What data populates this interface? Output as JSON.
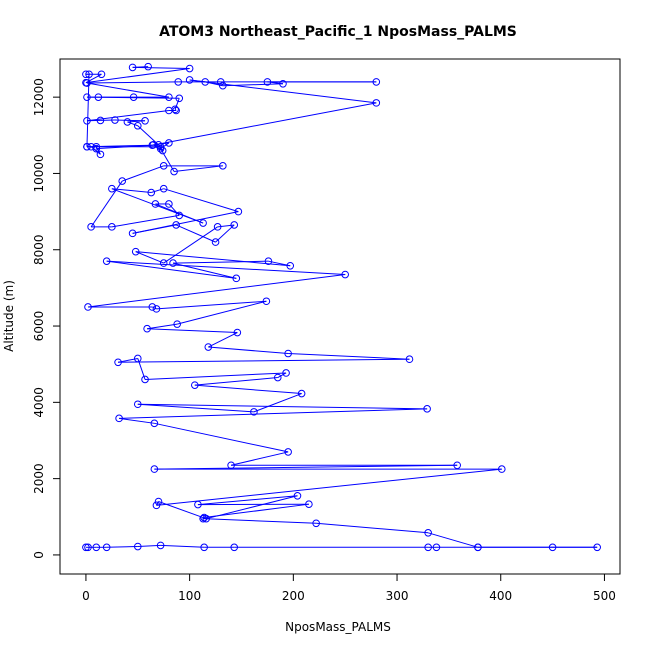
{
  "chart_data": {
    "type": "line",
    "title": "ATOM3 Northeast_Pacific_1 NposMass_PALMS",
    "xlabel": "NposMass_PALMS",
    "ylabel": "Altitude (m)",
    "xlim": [
      -25,
      515
    ],
    "ylim": [
      -500,
      13000
    ],
    "x_ticks": [
      0,
      100,
      200,
      300,
      400,
      500
    ],
    "y_ticks": [
      0,
      2000,
      4000,
      6000,
      8000,
      10000,
      12000
    ],
    "x_tick_labels": [
      "0",
      "100",
      "200",
      "300",
      "400",
      "500"
    ],
    "y_tick_labels": [
      "0",
      "2000",
      "4000",
      "6000",
      "8000",
      "10000",
      "12000"
    ],
    "grid": false,
    "line_color": "#0000ff",
    "marker": "open-circle",
    "series": [
      {
        "points": [
          [
            0,
            200
          ],
          [
            2,
            200
          ],
          [
            10,
            200
          ],
          [
            20,
            200
          ],
          [
            50,
            220
          ],
          [
            72,
            250
          ],
          [
            114,
            200
          ],
          [
            143,
            200
          ],
          [
            330,
            200
          ],
          [
            338,
            200
          ],
          [
            378,
            200
          ],
          [
            450,
            200
          ],
          [
            493,
            200
          ],
          [
            378,
            200
          ],
          [
            330,
            580
          ],
          [
            222,
            830
          ],
          [
            113,
            950
          ],
          [
            114,
            980
          ],
          [
            215,
            1330
          ],
          [
            108,
            1320
          ],
          [
            204,
            1550
          ],
          [
            116,
            950
          ],
          [
            70,
            1400
          ],
          [
            68,
            1300
          ],
          [
            401,
            2250
          ],
          [
            66,
            2250
          ],
          [
            358,
            2350
          ],
          [
            140,
            2350
          ],
          [
            195,
            2700
          ],
          [
            66,
            3450
          ],
          [
            32,
            3580
          ],
          [
            329,
            3830
          ],
          [
            50,
            3950
          ],
          [
            162,
            3750
          ],
          [
            208,
            4230
          ],
          [
            105,
            4450
          ],
          [
            185,
            4650
          ],
          [
            193,
            4770
          ],
          [
            57,
            4600
          ],
          [
            50,
            5150
          ],
          [
            31,
            5050
          ],
          [
            312,
            5130
          ],
          [
            195,
            5280
          ],
          [
            118,
            5450
          ],
          [
            146,
            5830
          ],
          [
            59,
            5930
          ],
          [
            88,
            6050
          ],
          [
            174,
            6650
          ],
          [
            68,
            6450
          ],
          [
            64,
            6500
          ],
          [
            2,
            6500
          ],
          [
            250,
            7350
          ],
          [
            20,
            7700
          ],
          [
            145,
            7250
          ],
          [
            84,
            7650
          ],
          [
            176,
            7700
          ],
          [
            197,
            7580
          ],
          [
            48,
            7950
          ],
          [
            75,
            7650
          ],
          [
            127,
            8600
          ],
          [
            143,
            8650
          ],
          [
            125,
            8200
          ],
          [
            87,
            8650
          ],
          [
            45,
            8430
          ],
          [
            147,
            9000
          ],
          [
            75,
            9600
          ],
          [
            63,
            9500
          ],
          [
            25,
            9600
          ],
          [
            113,
            8700
          ],
          [
            67,
            9200
          ],
          [
            80,
            9200
          ],
          [
            90,
            8900
          ],
          [
            25,
            8600
          ],
          [
            5,
            8600
          ],
          [
            35,
            9800
          ],
          [
            75,
            10200
          ],
          [
            132,
            10200
          ],
          [
            85,
            10050
          ],
          [
            72,
            10650
          ],
          [
            80,
            10800
          ],
          [
            65,
            10750
          ],
          [
            74,
            10600
          ],
          [
            70,
            10750
          ],
          [
            10,
            10650
          ],
          [
            10,
            10700
          ],
          [
            14,
            10500
          ],
          [
            5,
            10700
          ],
          [
            1,
            10700
          ],
          [
            72,
            10700
          ],
          [
            50,
            11250
          ],
          [
            40,
            11350
          ],
          [
            57,
            11380
          ],
          [
            28,
            11400
          ],
          [
            14,
            11390
          ],
          [
            1,
            11380
          ],
          [
            80,
            11650
          ],
          [
            87,
            11650
          ],
          [
            86,
            11680
          ],
          [
            90,
            11970
          ],
          [
            1,
            12000
          ],
          [
            12,
            12000
          ],
          [
            46,
            12000
          ],
          [
            80,
            12000
          ],
          [
            1,
            12370
          ],
          [
            89,
            12400
          ],
          [
            130,
            12400
          ],
          [
            280,
            12400
          ],
          [
            175,
            12400
          ],
          [
            190,
            12350
          ],
          [
            132,
            12300
          ],
          [
            115,
            12400
          ],
          [
            100,
            12450
          ],
          [
            280,
            11850
          ],
          [
            64,
            10740
          ],
          [
            1,
            10700
          ],
          [
            3,
            12600
          ],
          [
            0,
            12600
          ],
          [
            15,
            12600
          ],
          [
            0,
            12380
          ],
          [
            100,
            12750
          ],
          [
            45,
            12780
          ],
          [
            60,
            12800
          ]
        ]
      }
    ]
  }
}
